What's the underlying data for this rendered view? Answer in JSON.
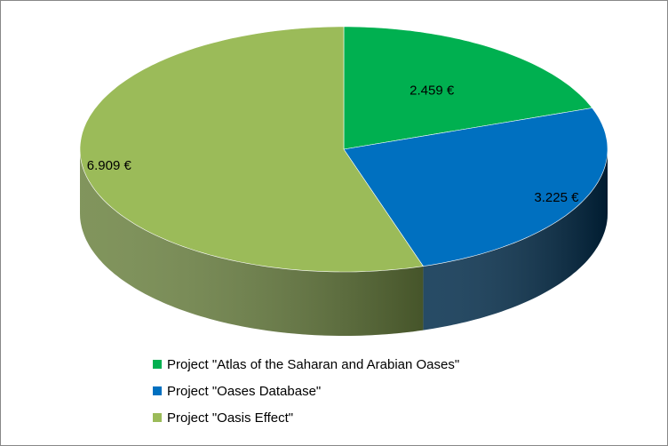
{
  "chart_data": {
    "type": "pie",
    "categories": [
      "Project \"Atlas of the Saharan and Arabian Oases\"",
      "Project \"Oases Database\"",
      "Project \"Oasis Effect\""
    ],
    "values": [
      2459,
      3225,
      6909
    ],
    "value_labels": [
      "2.459 €",
      "3.225 €",
      "6.909 €"
    ],
    "colors": [
      "#00b050",
      "#0070c0",
      "#9bbb59"
    ],
    "side_colors": [
      "#006b30",
      "#002b4a",
      "#6b8240"
    ],
    "legend": "bottom"
  }
}
